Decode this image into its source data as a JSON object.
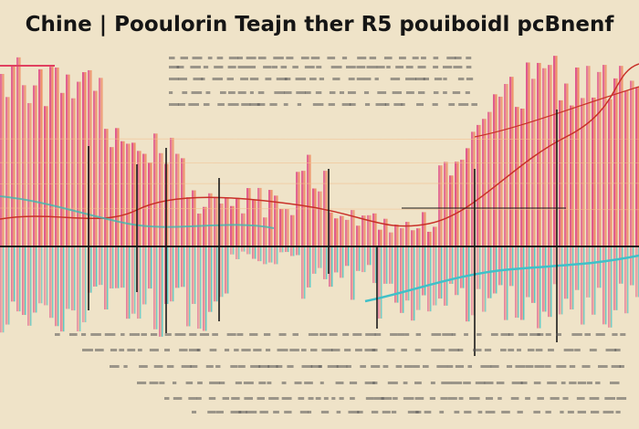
{
  "title": "Chine | Pooulorin Teajn ther R5 pouiboidl pcBnenf"
}
